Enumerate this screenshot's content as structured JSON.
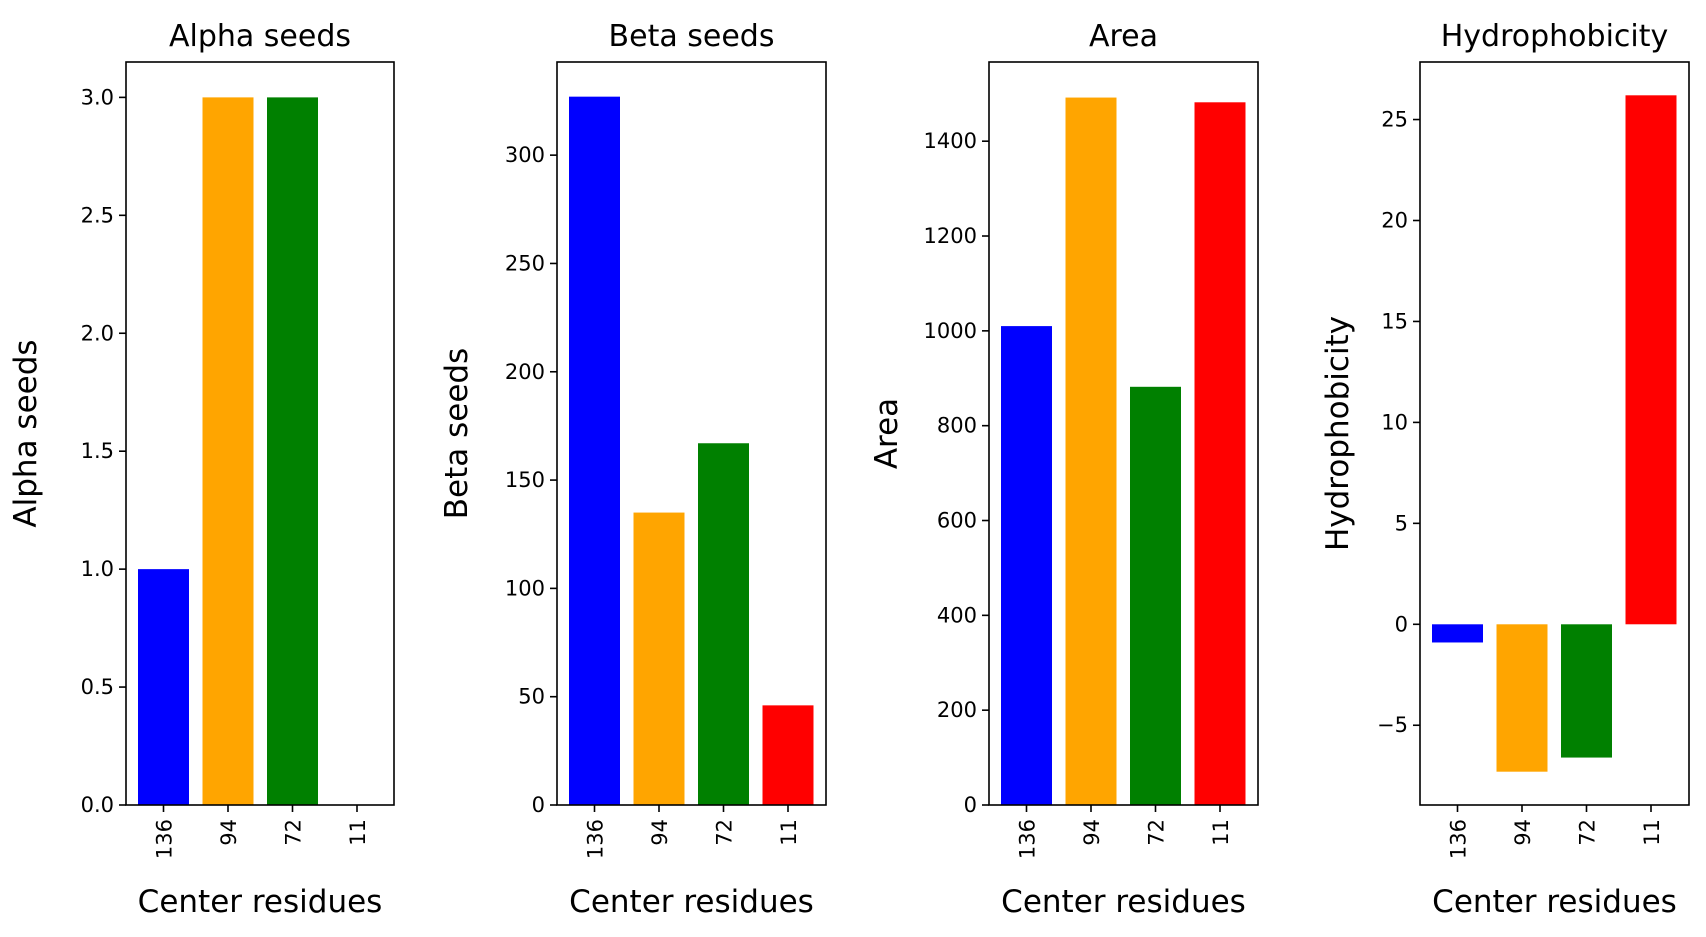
{
  "chart_data": [
    {
      "type": "bar",
      "title": "Alpha seeds",
      "xlabel": "Center residues",
      "ylabel": "Alpha seeds",
      "categories": [
        "136",
        "94",
        "72",
        "11"
      ],
      "values": [
        1,
        3,
        3,
        0
      ],
      "colors": [
        "#0000ff",
        "#ffa500",
        "#008000",
        "#ff0000"
      ],
      "ylim": [
        0,
        3.15
      ],
      "yticks": [
        0.0,
        0.5,
        1.0,
        1.5,
        2.0,
        2.5,
        3.0
      ],
      "ytick_labels": [
        "0.0",
        "0.5",
        "1.0",
        "1.5",
        "2.0",
        "2.5",
        "3.0"
      ],
      "grid": false
    },
    {
      "type": "bar",
      "title": "Beta seeds",
      "xlabel": "Center residues",
      "ylabel": "Beta seeds",
      "categories": [
        "136",
        "94",
        "72",
        "11"
      ],
      "values": [
        327,
        135,
        167,
        46
      ],
      "colors": [
        "#0000ff",
        "#ffa500",
        "#008000",
        "#ff0000"
      ],
      "ylim": [
        0,
        343
      ],
      "yticks": [
        0,
        50,
        100,
        150,
        200,
        250,
        300
      ],
      "ytick_labels": [
        "0",
        "50",
        "100",
        "150",
        "200",
        "250",
        "300"
      ],
      "grid": false
    },
    {
      "type": "bar",
      "title": "Area",
      "xlabel": "Center residues",
      "ylabel": "Area",
      "categories": [
        "136",
        "94",
        "72",
        "11"
      ],
      "values": [
        1010,
        1492,
        882,
        1482
      ],
      "colors": [
        "#0000ff",
        "#ffa500",
        "#008000",
        "#ff0000"
      ],
      "ylim": [
        0,
        1567
      ],
      "yticks": [
        0,
        200,
        400,
        600,
        800,
        1000,
        1200,
        1400
      ],
      "ytick_labels": [
        "0",
        "200",
        "400",
        "600",
        "800",
        "1000",
        "1200",
        "1400"
      ],
      "grid": false
    },
    {
      "type": "bar",
      "title": "Hydrophobicity",
      "xlabel": "Center residues",
      "ylabel": "Hydrophobicity",
      "categories": [
        "136",
        "94",
        "72",
        "11"
      ],
      "values": [
        -0.9,
        -7.3,
        -6.6,
        26.2
      ],
      "colors": [
        "#0000ff",
        "#ffa500",
        "#008000",
        "#ff0000"
      ],
      "ylim": [
        -8.95,
        27.85
      ],
      "yticks": [
        -5,
        0,
        5,
        10,
        15,
        20,
        25
      ],
      "ytick_labels": [
        "−5",
        "0",
        "5",
        "10",
        "15",
        "20",
        "25"
      ],
      "grid": false
    }
  ]
}
